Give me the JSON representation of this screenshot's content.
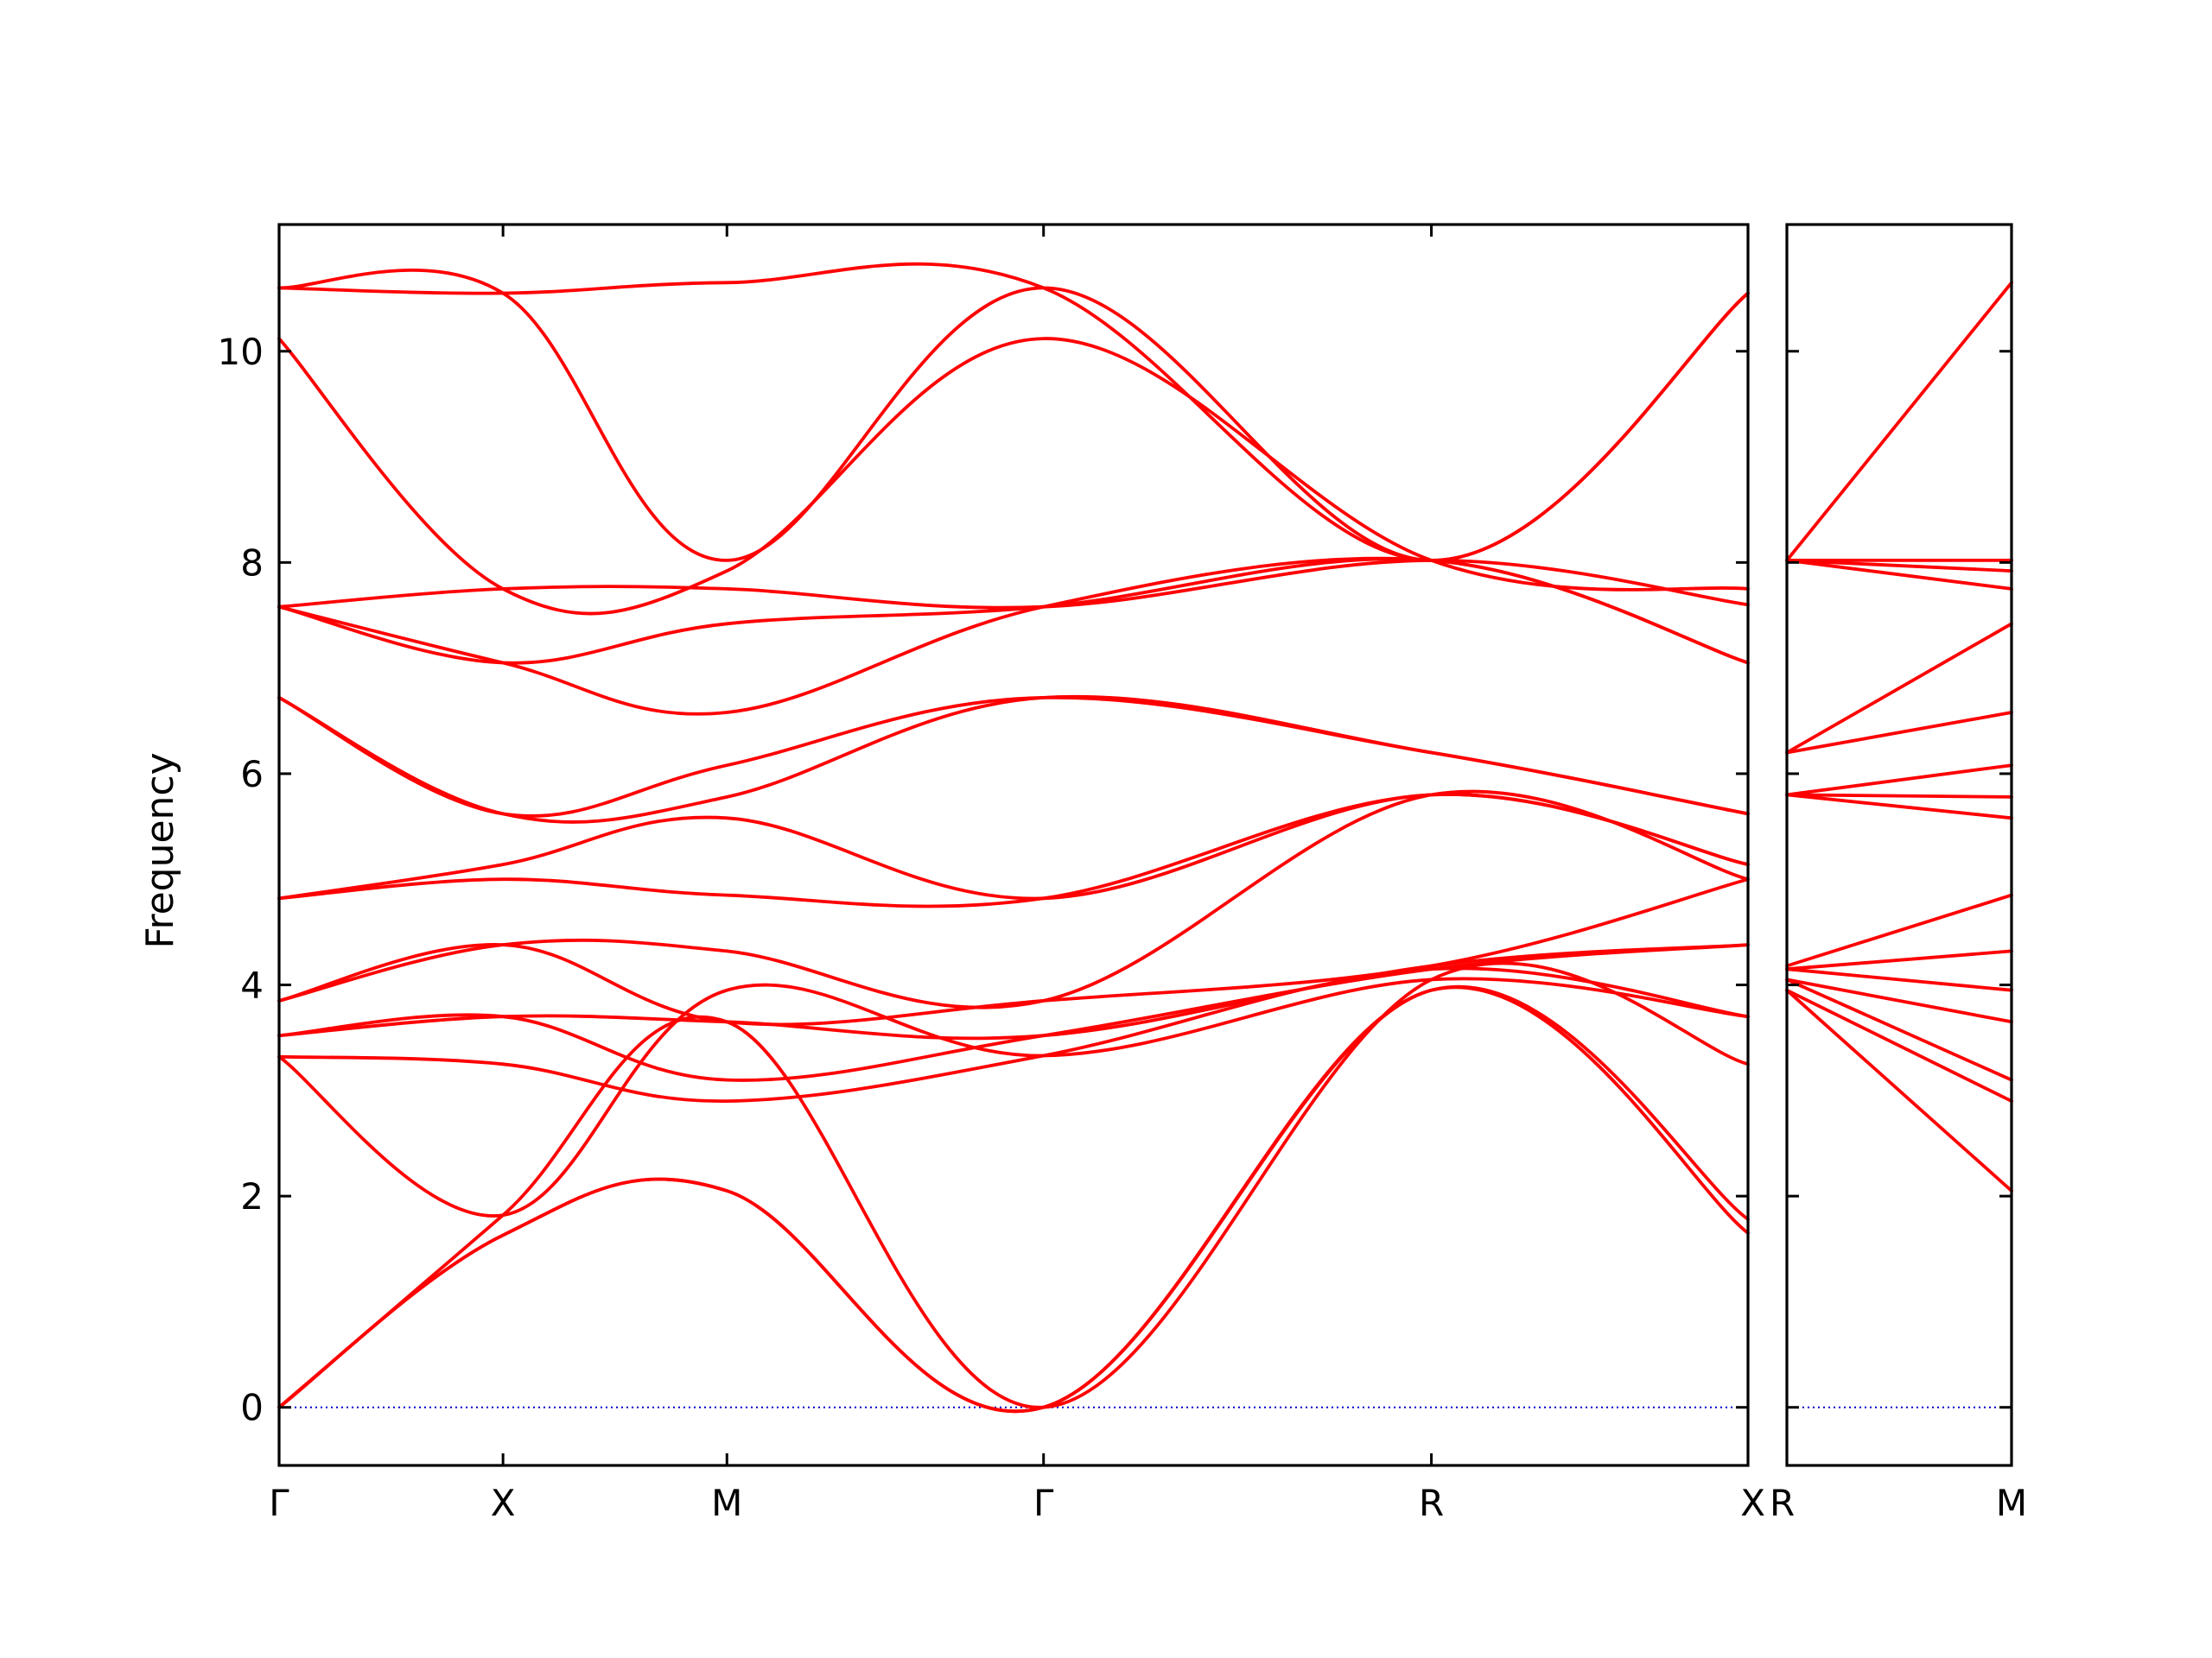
{
  "chart_data": {
    "type": "line",
    "title": "",
    "ylabel": "Frequency",
    "xlabel": "",
    "ylim": [
      -0.55,
      11.2
    ],
    "yticks": [
      0,
      2,
      4,
      6,
      8,
      10
    ],
    "grid": false,
    "line_color": "#ff0000",
    "zero_line_color": "#0000cc",
    "panels": [
      {
        "name": "path-1",
        "kpoints": [
          {
            "label": "Γ",
            "x": 0
          },
          {
            "label": "X",
            "x": 1
          },
          {
            "label": "M",
            "x": 2
          },
          {
            "label": "Γ",
            "x": 3.414
          },
          {
            "label": "R",
            "x": 5.146
          },
          {
            "label": "X",
            "x": 6.56
          }
        ],
        "bands": [
          {
            "x": [
              0,
              1,
              2,
              3.414,
              5.146,
              6.56
            ],
            "y": [
              0,
              1.63,
              2.05,
              0,
              3.95,
              1.65
            ]
          },
          {
            "x": [
              0,
              1,
              2,
              3.414,
              5.146,
              6.56
            ],
            "y": [
              0,
              1.63,
              2.05,
              0,
              3.95,
              1.78
            ]
          },
          {
            "x": [
              0,
              1,
              2,
              3.414,
              5.146,
              6.56
            ],
            "y": [
              0,
              1.82,
              3.65,
              0,
              4.05,
              3.25
            ]
          },
          {
            "x": [
              0,
              1,
              2,
              3.414,
              5.146,
              6.56
            ],
            "y": [
              3.32,
              1.82,
              3.95,
              3.33,
              4.05,
              3.7
            ]
          },
          {
            "x": [
              0,
              1,
              2,
              3.414,
              5.146,
              6.56
            ],
            "y": [
              3.32,
              3.25,
              2.9,
              3.33,
              4.15,
              3.7
            ]
          },
          {
            "x": [
              0,
              1,
              2,
              3.414,
              5.146,
              6.56
            ],
            "y": [
              3.52,
              3.7,
              3.1,
              3.52,
              4.15,
              4.38
            ]
          },
          {
            "x": [
              0,
              1,
              2,
              3.414,
              5.146,
              6.56
            ],
            "y": [
              3.52,
              3.7,
              3.65,
              3.52,
              4.18,
              4.38
            ]
          },
          {
            "x": [
              0,
              1,
              2,
              3.414,
              5.146,
              6.56
            ],
            "y": [
              3.85,
              4.38,
              3.65,
              3.85,
              4.18,
              5.0
            ]
          },
          {
            "x": [
              0,
              1,
              2,
              3.414,
              5.146,
              6.56
            ],
            "y": [
              3.85,
              4.38,
              4.32,
              3.85,
              5.8,
              5.0
            ]
          },
          {
            "x": [
              0,
              1,
              2,
              3.414,
              5.146,
              6.56
            ],
            "y": [
              4.82,
              5.0,
              4.85,
              4.82,
              5.8,
              5.14
            ]
          },
          {
            "x": [
              0,
              1,
              2,
              3.414,
              5.146,
              6.56
            ],
            "y": [
              4.82,
              5.14,
              5.58,
              4.82,
              5.8,
              5.14
            ]
          },
          {
            "x": [
              0,
              1,
              2,
              3.414,
              5.146,
              6.56
            ],
            "y": [
              6.72,
              5.62,
              5.78,
              6.72,
              6.2,
              5.62
            ]
          },
          {
            "x": [
              0,
              1,
              2,
              3.414,
              5.146,
              6.56
            ],
            "y": [
              6.72,
              5.62,
              6.08,
              6.72,
              6.2,
              5.62
            ]
          },
          {
            "x": [
              0,
              1,
              2,
              3.414,
              5.146,
              6.56
            ],
            "y": [
              7.58,
              7.05,
              6.58,
              7.58,
              8.02,
              7.05
            ]
          },
          {
            "x": [
              0,
              1,
              2,
              3.414,
              5.146,
              6.56
            ],
            "y": [
              7.58,
              7.05,
              7.42,
              7.58,
              8.02,
              7.05
            ]
          },
          {
            "x": [
              0,
              1,
              2,
              3.414,
              5.146,
              6.56
            ],
            "y": [
              7.58,
              7.75,
              7.75,
              7.58,
              8.02,
              7.6
            ]
          },
          {
            "x": [
              0,
              1,
              2,
              3.414,
              5.146,
              6.56
            ],
            "y": [
              10.12,
              7.75,
              7.92,
              10.12,
              8.02,
              7.75
            ]
          },
          {
            "x": [
              0,
              1,
              2,
              3.414,
              5.146,
              6.56
            ],
            "y": [
              10.6,
              10.55,
              8.02,
              10.6,
              8.02,
              10.55
            ]
          },
          {
            "x": [
              0,
              1,
              2,
              3.414,
              5.146,
              6.56
            ],
            "y": [
              10.6,
              10.55,
              10.65,
              10.6,
              8.02,
              10.55
            ]
          }
        ]
      },
      {
        "name": "path-2",
        "kpoints": [
          {
            "label": "R",
            "x": 0
          },
          {
            "label": "M",
            "x": 1
          }
        ],
        "bands": [
          {
            "x": [
              0,
              1
            ],
            "y": [
              3.95,
              2.05
            ]
          },
          {
            "x": [
              0,
              1
            ],
            "y": [
              3.95,
              2.9
            ]
          },
          {
            "x": [
              0,
              1
            ],
            "y": [
              4.05,
              3.1
            ]
          },
          {
            "x": [
              0,
              1
            ],
            "y": [
              4.05,
              3.65
            ]
          },
          {
            "x": [
              0,
              1
            ],
            "y": [
              4.15,
              3.95
            ]
          },
          {
            "x": [
              0,
              1
            ],
            "y": [
              4.15,
              4.32
            ]
          },
          {
            "x": [
              0,
              1
            ],
            "y": [
              4.18,
              4.85
            ]
          },
          {
            "x": [
              0,
              1
            ],
            "y": [
              5.8,
              5.58
            ]
          },
          {
            "x": [
              0,
              1
            ],
            "y": [
              5.8,
              5.78
            ]
          },
          {
            "x": [
              0,
              1
            ],
            "y": [
              5.8,
              6.08
            ]
          },
          {
            "x": [
              0,
              1
            ],
            "y": [
              6.2,
              6.58
            ]
          },
          {
            "x": [
              0,
              1
            ],
            "y": [
              6.2,
              7.42
            ]
          },
          {
            "x": [
              0,
              1
            ],
            "y": [
              8.02,
              7.75
            ]
          },
          {
            "x": [
              0,
              1
            ],
            "y": [
              8.02,
              7.92
            ]
          },
          {
            "x": [
              0,
              1
            ],
            "y": [
              8.02,
              8.02
            ]
          },
          {
            "x": [
              0,
              1
            ],
            "y": [
              8.02,
              10.65
            ]
          }
        ]
      }
    ]
  }
}
